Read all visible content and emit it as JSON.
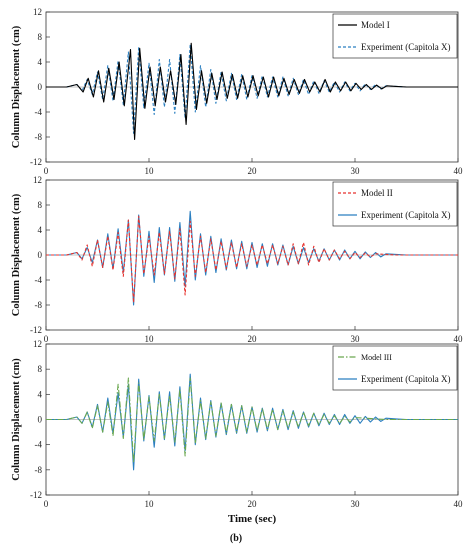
{
  "chart_data": [
    {
      "type": "line",
      "panel": 1,
      "ylabel": "Column Displacement (cm)",
      "xlabel": "",
      "xlim": [
        0,
        40
      ],
      "ylim": [
        -12,
        12
      ],
      "xticks": [
        "0",
        "10",
        "20",
        "30",
        "40"
      ],
      "yticks": [
        "-12",
        "-8",
        "-4",
        "0",
        "4",
        "8",
        "12"
      ],
      "grid": false,
      "legend_position": "top-right",
      "series": [
        {
          "name": "Model I",
          "color": "#000000",
          "style": "solid",
          "x": [
            0,
            2,
            3,
            3.6,
            4.1,
            4.6,
            5.1,
            5.6,
            6.1,
            6.6,
            7.1,
            7.6,
            8.2,
            8.6,
            9.1,
            9.6,
            10.1,
            10.6,
            11.1,
            11.6,
            12.1,
            12.6,
            13.1,
            13.6,
            14.1,
            14.6,
            15.1,
            15.6,
            16.1,
            16.6,
            17.1,
            17.6,
            18.1,
            18.6,
            19.1,
            19.6,
            20.1,
            20.6,
            21.1,
            21.6,
            22.1,
            22.6,
            23.1,
            23.6,
            24.1,
            24.6,
            25.1,
            25.6,
            26.1,
            26.6,
            27.1,
            27.6,
            28.1,
            28.6,
            29.1,
            29.6,
            30.1,
            30.6,
            31.1,
            31.6,
            32.1,
            32.6,
            33.1,
            34,
            35,
            40
          ],
          "y": [
            0,
            0,
            0.4,
            -0.8,
            1.4,
            -1.6,
            2.6,
            -2.4,
            3,
            -2,
            4,
            -3,
            6,
            -8.4,
            6.2,
            -3.4,
            3.2,
            -3,
            3.2,
            -2.4,
            2.6,
            -2.8,
            5.2,
            -6,
            7,
            -3.6,
            2.6,
            -2.6,
            2.2,
            -2,
            2.4,
            -1.8,
            2,
            -1.8,
            1.8,
            -1.6,
            1.8,
            -1.4,
            1.6,
            -1.6,
            1.6,
            -1.4,
            1.4,
            -1.2,
            1.2,
            -1,
            1.2,
            -0.8,
            0.8,
            -0.8,
            1.2,
            -0.8,
            0.8,
            -0.6,
            0.8,
            -0.6,
            0.6,
            -0.4,
            0.4,
            -0.4,
            0.3,
            -0.3,
            0.2,
            0.1,
            0,
            0
          ]
        },
        {
          "name": "Experiment (Capitola X)",
          "color": "#2b7fc0",
          "style": "dashed",
          "x": [
            0,
            2,
            3,
            3.5,
            4,
            4.5,
            5,
            5.5,
            6,
            6.5,
            7,
            7.5,
            8,
            8.5,
            9,
            9.5,
            10,
            10.5,
            11,
            11.5,
            12,
            12.5,
            13,
            13.5,
            14,
            14.5,
            15,
            15.5,
            16,
            16.5,
            17,
            17.5,
            18,
            18.5,
            19,
            19.5,
            20,
            20.5,
            21,
            21.5,
            22,
            22.5,
            23,
            23.5,
            24,
            24.5,
            25,
            25.5,
            26,
            26.5,
            27,
            27.5,
            28,
            28.5,
            29,
            29.5,
            30,
            30.5,
            31,
            31.5,
            32,
            32.5,
            33,
            34,
            35,
            40
          ],
          "y": [
            0,
            0,
            0.4,
            -0.6,
            1.2,
            -1.2,
            2.4,
            -2,
            3.4,
            -2.2,
            4.2,
            -2.8,
            5.6,
            -7.4,
            6.4,
            -3.4,
            3.8,
            -4.4,
            4.4,
            -3.2,
            4.4,
            -4.2,
            5.2,
            -5,
            6.8,
            -4,
            3.4,
            -3.2,
            2.8,
            -2.6,
            2.4,
            -2.2,
            2.2,
            -2,
            2,
            -2,
            1.8,
            -1.8,
            1.8,
            -1.6,
            1.6,
            -1.6,
            1.6,
            -1.4,
            1.4,
            -1.2,
            1.2,
            -1.2,
            1,
            -1,
            1,
            -0.8,
            0.8,
            -0.8,
            0.8,
            -0.6,
            0.6,
            -0.6,
            0.5,
            -0.4,
            0.4,
            -0.3,
            0.2,
            0.1,
            0,
            0
          ]
        }
      ]
    },
    {
      "type": "line",
      "panel": 2,
      "ylabel": "Column Displacement (cm)",
      "xlabel": "",
      "xlim": [
        0,
        40
      ],
      "ylim": [
        -12,
        12
      ],
      "xticks": [
        "0",
        "10",
        "20",
        "30",
        "40"
      ],
      "yticks": [
        "-12",
        "-8",
        "-4",
        "0",
        "4",
        "8",
        "12"
      ],
      "grid": false,
      "legend_position": "top-right",
      "series": [
        {
          "name": "Model II",
          "color": "#e8322d",
          "style": "dashed",
          "x": [
            0,
            2,
            3,
            3.5,
            4,
            4.5,
            5,
            5.5,
            6,
            6.5,
            7,
            7.5,
            8,
            8.5,
            9,
            9.5,
            10,
            10.5,
            11,
            11.5,
            12,
            12.5,
            13,
            13.5,
            14,
            14.5,
            15,
            15.5,
            16,
            16.5,
            17,
            17.5,
            18,
            18.5,
            19,
            19.5,
            20,
            20.5,
            21,
            21.5,
            22,
            22.5,
            23,
            23.5,
            24,
            24.5,
            25,
            25.5,
            26,
            26.5,
            27,
            27.5,
            28,
            28.5,
            29,
            29.5,
            30,
            30.5,
            31,
            31.5,
            32,
            33,
            34,
            35,
            40
          ],
          "y": [
            0,
            0,
            0.4,
            -0.8,
            1.6,
            -1.8,
            2.4,
            -2,
            3,
            -2.4,
            3.6,
            -3.4,
            5.6,
            -7.6,
            6.2,
            -3,
            3,
            -3.2,
            3.6,
            -3,
            3.8,
            -3.8,
            4.2,
            -6.4,
            5.4,
            -3.4,
            3,
            -2.8,
            2.6,
            -2.4,
            2.2,
            -2.2,
            2,
            -2,
            1.8,
            -1.8,
            1.6,
            -1.6,
            1.6,
            -1.4,
            1.6,
            -1.4,
            1.4,
            -1.6,
            1.8,
            -1.4,
            2,
            -1.6,
            1.4,
            -1.2,
            1,
            -0.8,
            0.8,
            -0.6,
            0.6,
            -0.6,
            0.4,
            -0.4,
            0.3,
            -0.3,
            0.2,
            0.1,
            0,
            0,
            0
          ]
        },
        {
          "name": "Experiment (Capitola X)",
          "color": "#2b7fc0",
          "style": "solid",
          "x": [
            0,
            2,
            3,
            3.5,
            4,
            4.5,
            5,
            5.5,
            6,
            6.5,
            7,
            7.5,
            8,
            8.5,
            9,
            9.5,
            10,
            10.5,
            11,
            11.5,
            12,
            12.5,
            13,
            13.5,
            14,
            14.5,
            15,
            15.5,
            16,
            16.5,
            17,
            17.5,
            18,
            18.5,
            19,
            19.5,
            20,
            20.5,
            21,
            21.5,
            22,
            22.5,
            23,
            23.5,
            24,
            24.5,
            25,
            25.5,
            26,
            26.5,
            27,
            27.5,
            28,
            28.5,
            29,
            29.5,
            30,
            30.5,
            31,
            31.5,
            32,
            32.5,
            33,
            34,
            35,
            40
          ],
          "y": [
            0,
            0,
            0.4,
            -0.6,
            1.2,
            -1.2,
            2.4,
            -2,
            3.4,
            -2.2,
            4.2,
            -2.8,
            5.6,
            -8,
            6.4,
            -3.4,
            3.8,
            -4.4,
            4.4,
            -3.2,
            4.4,
            -4.2,
            5.2,
            -5,
            7,
            -4,
            3.4,
            -3.2,
            3,
            -2.8,
            2.6,
            -2.4,
            2.4,
            -2.2,
            2.2,
            -2.2,
            2,
            -2,
            1.8,
            -1.8,
            1.8,
            -1.6,
            1.6,
            -1.6,
            1.4,
            -1.4,
            1.2,
            -1.2,
            1,
            -1,
            1,
            -0.8,
            0.8,
            -0.8,
            0.8,
            -0.6,
            0.6,
            -0.6,
            0.5,
            -0.4,
            0.4,
            -0.3,
            0.2,
            0.1,
            0,
            0
          ]
        }
      ]
    },
    {
      "type": "line",
      "panel": 3,
      "ylabel": "Column Displacement (cm)",
      "xlabel": "Time (sec)",
      "xlim": [
        0,
        40
      ],
      "ylim": [
        -12,
        12
      ],
      "xticks": [
        "0",
        "10",
        "20",
        "30",
        "40"
      ],
      "yticks": [
        "-12",
        "-8",
        "-4",
        "0",
        "4",
        "8",
        "12"
      ],
      "grid": false,
      "legend_position": "top-right",
      "series": [
        {
          "name": "Model III",
          "color": "#6aa84f",
          "style": "dashdot",
          "x": [
            0,
            2,
            3,
            3.5,
            4,
            4.5,
            5,
            5.5,
            6,
            6.5,
            7,
            7.5,
            8,
            8.5,
            9,
            9.5,
            10,
            10.5,
            11,
            11.5,
            12,
            12.5,
            13,
            13.5,
            14,
            14.5,
            15,
            15.5,
            16,
            16.5,
            17,
            17.5,
            18,
            18.5,
            19,
            19.5,
            20,
            20.5,
            21,
            21.5,
            22,
            22.5,
            23,
            23.5,
            24,
            24.5,
            25,
            25.5,
            26,
            26.5,
            27,
            27.5,
            28,
            28.5,
            29,
            29.5,
            30,
            31,
            32,
            33,
            35,
            40
          ],
          "y": [
            0,
            0,
            0.4,
            -0.6,
            1.2,
            -1.4,
            2.2,
            -2,
            2.8,
            -2.6,
            5.6,
            -3,
            6.6,
            -6.8,
            5.8,
            -3.2,
            3.6,
            -3.4,
            4,
            -3,
            3.8,
            -3.6,
            4.8,
            -5.8,
            6.6,
            -3.8,
            3,
            -3,
            2.8,
            -2.6,
            2.6,
            -2.2,
            2.4,
            -2,
            2.2,
            -2,
            2,
            -1.8,
            1.8,
            -1.6,
            1.6,
            -1.6,
            1.4,
            -1.4,
            1.2,
            -1.2,
            1.2,
            -1,
            1,
            -0.8,
            0.8,
            -0.6,
            0.6,
            -0.6,
            0.5,
            -0.4,
            0.3,
            0.2,
            0.1,
            0,
            0,
            0
          ]
        },
        {
          "name": "Experiment (Capitola X)",
          "color": "#2b7fc0",
          "style": "solid",
          "x": [
            0,
            2,
            3,
            3.5,
            4,
            4.5,
            5,
            5.5,
            6,
            6.5,
            7,
            7.5,
            8,
            8.5,
            9,
            9.5,
            10,
            10.5,
            11,
            11.5,
            12,
            12.5,
            13,
            13.5,
            14,
            14.5,
            15,
            15.5,
            16,
            16.5,
            17,
            17.5,
            18,
            18.5,
            19,
            19.5,
            20,
            20.5,
            21,
            21.5,
            22,
            22.5,
            23,
            23.5,
            24,
            24.5,
            25,
            25.5,
            26,
            26.5,
            27,
            27.5,
            28,
            28.5,
            29,
            29.5,
            30,
            30.5,
            31,
            31.5,
            32,
            32.5,
            33,
            34,
            35,
            40
          ],
          "y": [
            0,
            0,
            0.4,
            -0.6,
            1.2,
            -1.2,
            2.4,
            -2,
            3.4,
            -2.2,
            4.2,
            -2.8,
            5.6,
            -8,
            6.4,
            -3.4,
            3.8,
            -4.4,
            4.4,
            -3.2,
            4.4,
            -4.2,
            5.2,
            -5,
            7.2,
            -4,
            3.4,
            -3.2,
            3,
            -2.8,
            2.6,
            -2.4,
            2.4,
            -2.2,
            2.2,
            -2.2,
            2,
            -2,
            1.8,
            -1.8,
            1.8,
            -1.6,
            1.6,
            -1.6,
            1.4,
            -1.4,
            1.2,
            -1.2,
            1,
            -1,
            1,
            -0.8,
            0.8,
            -0.8,
            0.8,
            -0.6,
            0.6,
            -0.6,
            0.5,
            -0.4,
            0.4,
            -0.3,
            0.2,
            0.1,
            0,
            0
          ]
        }
      ]
    }
  ],
  "caption": "(b)"
}
